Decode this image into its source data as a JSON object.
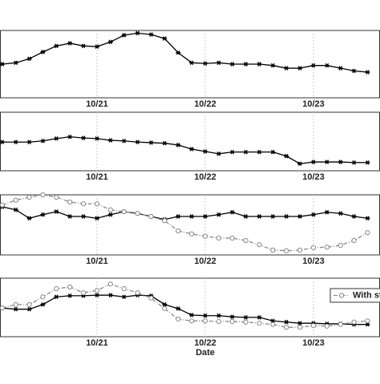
{
  "chart_data": [
    {
      "type": "line",
      "xlim": [
        20.104,
        23.615
      ],
      "xticks": [
        {
          "value": 21,
          "label": "10/21"
        },
        {
          "value": 22,
          "label": "10/22"
        },
        {
          "value": 23,
          "label": "10/23"
        }
      ],
      "ylim": [
        0,
        1
      ],
      "grid": true,
      "x": [
        20.125,
        20.25,
        20.375,
        20.5,
        20.625,
        20.75,
        20.875,
        21,
        21.125,
        21.25,
        21.375,
        21.5,
        21.625,
        21.75,
        21.875,
        22,
        22.125,
        22.25,
        22.375,
        22.5,
        22.625,
        22.75,
        22.875,
        23,
        23.125,
        23.25,
        23.375,
        23.5
      ],
      "series": [
        {
          "color": "#000000",
          "marker": "star",
          "dash": false,
          "values": [
            0.5,
            0.52,
            0.58,
            0.68,
            0.77,
            0.81,
            0.77,
            0.76,
            0.83,
            0.93,
            0.96,
            0.94,
            0.88,
            0.67,
            0.52,
            0.51,
            0.52,
            0.5,
            0.5,
            0.5,
            0.48,
            0.44,
            0.44,
            0.48,
            0.48,
            0.44,
            0.4,
            0.38
          ]
        }
      ]
    },
    {
      "type": "line",
      "xlim": [
        20.104,
        23.615
      ],
      "xticks": [
        {
          "value": 21,
          "label": "10/21"
        },
        {
          "value": 22,
          "label": "10/22"
        },
        {
          "value": 23,
          "label": "10/23"
        }
      ],
      "ylim": [
        0,
        1
      ],
      "grid": true,
      "x": [
        20.125,
        20.25,
        20.375,
        20.5,
        20.625,
        20.75,
        20.875,
        21,
        21.125,
        21.25,
        21.375,
        21.5,
        21.625,
        21.75,
        21.875,
        22,
        22.125,
        22.25,
        22.375,
        22.5,
        22.625,
        22.75,
        22.875,
        23,
        23.125,
        23.25,
        23.375,
        23.5
      ],
      "series": [
        {
          "color": "#000000",
          "marker": "star",
          "dash": false,
          "values": [
            0.49,
            0.49,
            0.49,
            0.51,
            0.55,
            0.58,
            0.56,
            0.55,
            0.52,
            0.51,
            0.49,
            0.48,
            0.47,
            0.44,
            0.37,
            0.33,
            0.29,
            0.32,
            0.32,
            0.32,
            0.32,
            0.25,
            0.12,
            0.15,
            0.15,
            0.15,
            0.14,
            0.14
          ]
        }
      ]
    },
    {
      "type": "line",
      "xlim": [
        20.104,
        23.615
      ],
      "xticks": [
        {
          "value": 21,
          "label": "10/21"
        },
        {
          "value": 22,
          "label": "10/22"
        },
        {
          "value": 23,
          "label": "10/23"
        }
      ],
      "ylim": [
        0,
        1
      ],
      "grid": true,
      "x": [
        20.125,
        20.25,
        20.375,
        20.5,
        20.625,
        20.75,
        20.875,
        21,
        21.125,
        21.25,
        21.375,
        21.5,
        21.625,
        21.75,
        21.875,
        22,
        22.125,
        22.25,
        22.375,
        22.5,
        22.625,
        22.75,
        22.875,
        23,
        23.125,
        23.25,
        23.375,
        23.5
      ],
      "series": [
        {
          "color": "#000000",
          "marker": "star",
          "dash": false,
          "values": [
            0.8,
            0.75,
            0.61,
            0.67,
            0.72,
            0.64,
            0.64,
            0.61,
            0.67,
            0.72,
            0.69,
            0.64,
            0.59,
            0.64,
            0.64,
            0.64,
            0.67,
            0.71,
            0.64,
            0.64,
            0.64,
            0.64,
            0.64,
            0.67,
            0.71,
            0.69,
            0.64,
            0.61
          ]
        },
        {
          "color": "#888888",
          "marker": "circle",
          "dash": true,
          "values": [
            0.83,
            0.91,
            0.96,
            1.0,
            0.96,
            0.88,
            0.85,
            0.85,
            0.75,
            0.72,
            0.69,
            0.64,
            0.57,
            0.4,
            0.35,
            0.31,
            0.28,
            0.28,
            0.24,
            0.17,
            0.08,
            0.07,
            0.08,
            0.12,
            0.13,
            0.16,
            0.24,
            0.37
          ]
        }
      ]
    },
    {
      "type": "line",
      "xlim": [
        20.104,
        23.615
      ],
      "xticks": [
        {
          "value": 21,
          "label": "10/21"
        },
        {
          "value": 22,
          "label": "10/22"
        },
        {
          "value": 23,
          "label": "10/23"
        }
      ],
      "ylim": [
        0,
        1
      ],
      "grid": true,
      "xlabel": "Date",
      "legend": "upper right",
      "x": [
        20.125,
        20.25,
        20.375,
        20.5,
        20.625,
        20.75,
        20.875,
        21,
        21.125,
        21.25,
        21.375,
        21.5,
        21.625,
        21.75,
        21.875,
        22,
        22.125,
        22.25,
        22.375,
        22.5,
        22.625,
        22.75,
        22.875,
        23,
        23.125,
        23.25,
        23.375,
        23.5
      ],
      "series": [
        {
          "color": "#000000",
          "marker": "star",
          "dash": false,
          "values": [
            0.49,
            0.47,
            0.47,
            0.55,
            0.68,
            0.7,
            0.7,
            0.71,
            0.71,
            0.68,
            0.71,
            0.7,
            0.55,
            0.48,
            0.37,
            0.36,
            0.36,
            0.34,
            0.33,
            0.33,
            0.27,
            0.25,
            0.23,
            0.23,
            0.22,
            0.22,
            0.21,
            0.21
          ]
        },
        {
          "name": "With st",
          "color": "#888888",
          "marker": "circle",
          "dash": true,
          "values": [
            0.49,
            0.55,
            0.55,
            0.68,
            0.82,
            0.85,
            0.75,
            0.79,
            0.9,
            0.82,
            0.75,
            0.66,
            0.48,
            0.3,
            0.27,
            0.27,
            0.26,
            0.26,
            0.25,
            0.23,
            0.21,
            0.16,
            0.16,
            0.19,
            0.18,
            0.21,
            0.25,
            0.27
          ]
        }
      ]
    }
  ]
}
